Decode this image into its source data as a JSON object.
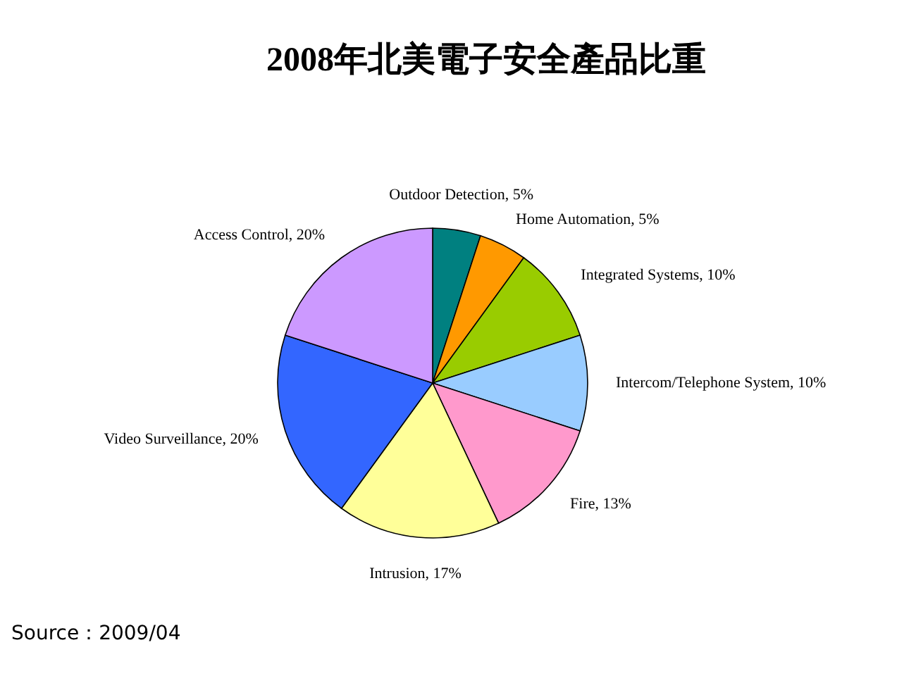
{
  "chart_data": {
    "type": "pie",
    "title": "2008年北美電子安全產品比重",
    "categories": [
      "Outdoor Detection",
      "Home Automation",
      "Integrated Systems",
      "Intercom/Telephone System",
      "Fire",
      "Intrusion",
      "Video Surveillance",
      "Access Control"
    ],
    "values": [
      5,
      5,
      10,
      10,
      13,
      17,
      20,
      20
    ],
    "value_labels": [
      "5%",
      "5%",
      "10%",
      "10%",
      "13%",
      "17%",
      "20%",
      "20%"
    ],
    "colors": [
      "#008080",
      "#ff9900",
      "#99cc00",
      "#99ccff",
      "#ff99cc",
      "#ffff99",
      "#3366ff",
      "#cc99ff"
    ],
    "legend": false,
    "annotations": [
      "Source：2009/04"
    ]
  }
}
